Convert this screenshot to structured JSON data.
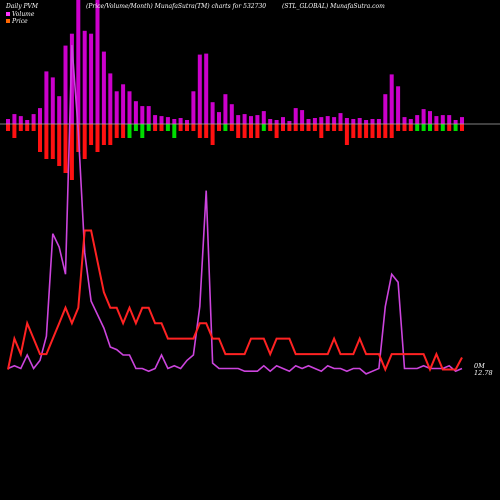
{
  "header": {
    "left": "Daily PVM",
    "center": "(Price/Volume/Month) MunafaSutra(TM) charts for 532730",
    "right": "(STL_GLOBAL) MunafaSutra.com"
  },
  "legend": {
    "volume_label": "Volume",
    "price_label": "Price",
    "volume_color": "#ff33ff",
    "price_color": "#ff6600"
  },
  "end_labels": {
    "volume_tag": "0M",
    "price_tag": "12.78"
  },
  "colors": {
    "background": "#000000",
    "volume_bar": "#cc00cc",
    "up_bar": "#00dd00",
    "down_bar": "#ff1111",
    "volume_line": "#cc44dd",
    "price_line": "#ff2222",
    "baseline": "#aaaaaa"
  },
  "chart_data": {
    "type": "bar",
    "title": "Daily PVM (Price/Volume/Month) MunafaSutra(TM) charts for 532730",
    "series": [
      {
        "name": "Volume",
        "values": [
          5,
          10,
          8,
          4,
          10,
          16,
          53,
          47,
          28,
          79,
          91,
          125,
          94,
          91,
          125,
          73,
          51,
          33,
          40,
          33,
          23,
          18,
          18,
          9,
          8,
          7,
          5,
          6,
          4,
          33,
          70,
          71,
          22,
          12,
          30,
          20,
          9,
          10,
          8,
          9,
          13,
          5,
          4,
          7,
          3,
          16,
          14,
          5,
          6,
          7,
          8,
          7,
          11,
          6,
          5,
          6,
          4,
          5,
          5,
          30,
          50,
          38,
          7,
          5,
          9,
          15,
          13,
          8,
          9,
          9,
          4,
          7
        ]
      },
      {
        "name": "Change",
        "values": [
          -1,
          -2,
          -1,
          -1,
          -1,
          -4,
          -5,
          -5,
          -6,
          -7,
          -8,
          -4,
          -5,
          -3,
          -4,
          -3,
          -3,
          -2,
          -2,
          2,
          1,
          2,
          1,
          -1,
          -1,
          1,
          2,
          -1,
          -1,
          -1,
          -2,
          -2,
          -3,
          -1,
          1,
          -1,
          -2,
          -2,
          -2,
          -2,
          1,
          -1,
          -2,
          -1,
          -1,
          -1,
          -1,
          -1,
          -1,
          -2,
          -1,
          -1,
          -1,
          -3,
          -2,
          -2,
          -2,
          -2,
          -2,
          -2,
          -2,
          -1,
          -1,
          -1,
          1,
          1,
          1,
          -1,
          1,
          -1,
          1,
          -1
        ]
      }
    ],
    "price_line": [
      12,
      14,
      13,
      15,
      14,
      13,
      13,
      14,
      15,
      16,
      15,
      16,
      21,
      21,
      19,
      17,
      16,
      16,
      15,
      16,
      15,
      16,
      16,
      15,
      15,
      14,
      14,
      14,
      14,
      14,
      15,
      15,
      14,
      14,
      13,
      13,
      13,
      13,
      14,
      14,
      14,
      13,
      14,
      14,
      14,
      13,
      13,
      13,
      13,
      13,
      13,
      14,
      13,
      13,
      13,
      14,
      13,
      13,
      13,
      12,
      13,
      13,
      13,
      13,
      13,
      13,
      12,
      13,
      12,
      12,
      12,
      12.78
    ],
    "volume_line": [
      5,
      6,
      5,
      10,
      5,
      8,
      17,
      55,
      50,
      40,
      125,
      93,
      48,
      30,
      25,
      20,
      13,
      12,
      10,
      10,
      5,
      5,
      4,
      5,
      10,
      5,
      6,
      5,
      8,
      10,
      28,
      71,
      7,
      5,
      5,
      5,
      5,
      4,
      4,
      4,
      6,
      4,
      6,
      5,
      4,
      6,
      5,
      6,
      5,
      4,
      6,
      5,
      5,
      4,
      5,
      5,
      3,
      4,
      5,
      28,
      40,
      37,
      5,
      5,
      5,
      6,
      5,
      5,
      5,
      6,
      4,
      5
    ]
  }
}
